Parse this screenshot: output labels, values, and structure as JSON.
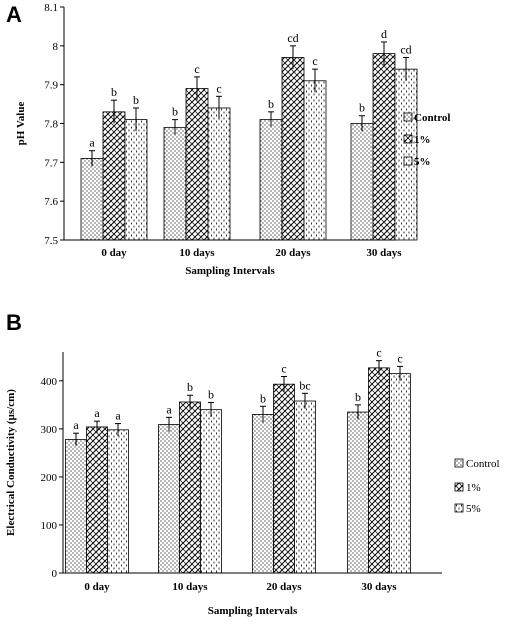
{
  "panels": {
    "A": {
      "label": "A"
    },
    "B": {
      "label": "B"
    }
  },
  "chart_data": [
    {
      "type": "bar",
      "panel": "A",
      "ylabel": "pH Value",
      "xlabel": "Sampling Intervals",
      "categories": [
        "0 day",
        "10 days",
        "20 days",
        "30 days"
      ],
      "ylim": [
        7.5,
        8.1
      ],
      "yticks": [
        "7.5",
        "7.6",
        "7.7",
        "7.8",
        "7.9",
        "8",
        "8.1"
      ],
      "legend_position": "right",
      "series": [
        {
          "name": "Control",
          "values": [
            7.71,
            7.79,
            7.81,
            7.8
          ],
          "errors": [
            0.02,
            0.02,
            0.02,
            0.02
          ],
          "labels": [
            "a",
            "b",
            "b",
            "b"
          ],
          "pattern": "dots"
        },
        {
          "name": "1%",
          "values": [
            7.83,
            7.89,
            7.97,
            7.98
          ],
          "errors": [
            0.03,
            0.03,
            0.03,
            0.03
          ],
          "labels": [
            "b",
            "c",
            "cd",
            "d"
          ],
          "pattern": "hatch"
        },
        {
          "name": "5%",
          "values": [
            7.81,
            7.84,
            7.91,
            7.94
          ],
          "errors": [
            0.03,
            0.03,
            0.03,
            0.03
          ],
          "labels": [
            "b",
            "c",
            "c",
            "cd"
          ],
          "pattern": "dashes"
        }
      ]
    },
    {
      "type": "bar",
      "panel": "B",
      "ylabel": "Electrical Conductivity (µs/cm)",
      "xlabel": "Sampling Intervals",
      "categories": [
        "0 day",
        "10 days",
        "20 days",
        "30 days"
      ],
      "ylim": [
        0,
        460
      ],
      "yticks": [
        "0",
        "100",
        "200",
        "300",
        "400"
      ],
      "legend_position": "right",
      "series": [
        {
          "name": "Control",
          "values": [
            278,
            309,
            330,
            335
          ],
          "errors": [
            13,
            15,
            17,
            15
          ],
          "labels": [
            "a",
            "a",
            "b",
            "b"
          ],
          "pattern": "dots"
        },
        {
          "name": "1%",
          "values": [
            304,
            356,
            393,
            427
          ],
          "errors": [
            12,
            14,
            16,
            15
          ],
          "labels": [
            "a",
            "b",
            "c",
            "c"
          ],
          "pattern": "hatch"
        },
        {
          "name": "5%",
          "values": [
            298,
            340,
            358,
            415
          ],
          "errors": [
            13,
            15,
            16,
            15
          ],
          "labels": [
            "a",
            "b",
            "bc",
            "c"
          ],
          "pattern": "dashes"
        }
      ]
    }
  ]
}
